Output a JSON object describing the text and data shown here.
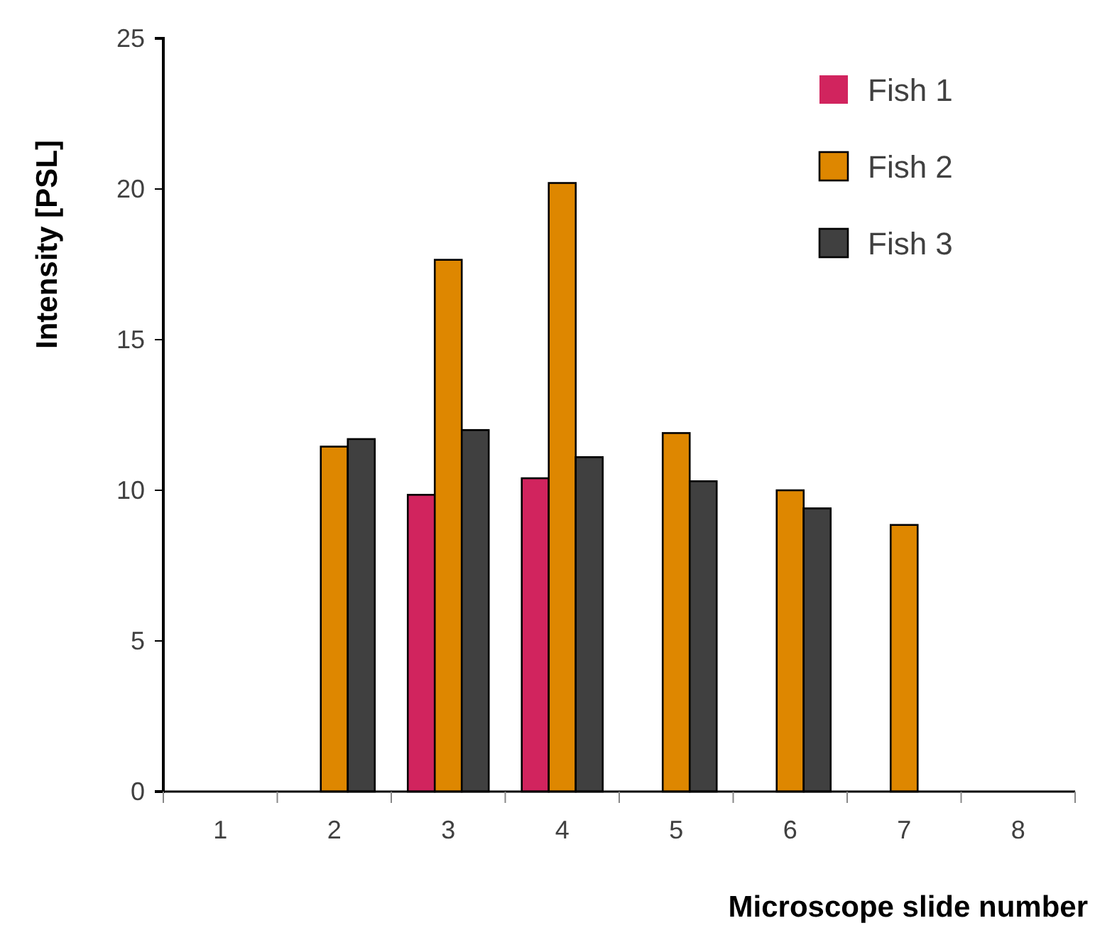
{
  "chart_data": {
    "type": "bar",
    "xlabel": "Microscope slide number",
    "ylabel": "Intensity [PSL]",
    "categories": [
      "1",
      "2",
      "3",
      "4",
      "5",
      "6",
      "7",
      "8"
    ],
    "series": [
      {
        "name": "Fish 1",
        "color": "#d1245e",
        "values": [
          null,
          null,
          9.85,
          10.4,
          null,
          null,
          null,
          null
        ]
      },
      {
        "name": "Fish 2",
        "color": "#de8700",
        "values": [
          null,
          11.45,
          17.65,
          20.2,
          11.9,
          10.0,
          8.85,
          null
        ]
      },
      {
        "name": "Fish 3",
        "color": "#404040",
        "values": [
          null,
          11.7,
          12.0,
          11.1,
          10.3,
          9.4,
          null,
          null
        ]
      }
    ],
    "ylim": [
      0,
      25
    ],
    "yticks": [
      0,
      5,
      10,
      15,
      20,
      25
    ],
    "grid": false,
    "legend": "top right"
  }
}
